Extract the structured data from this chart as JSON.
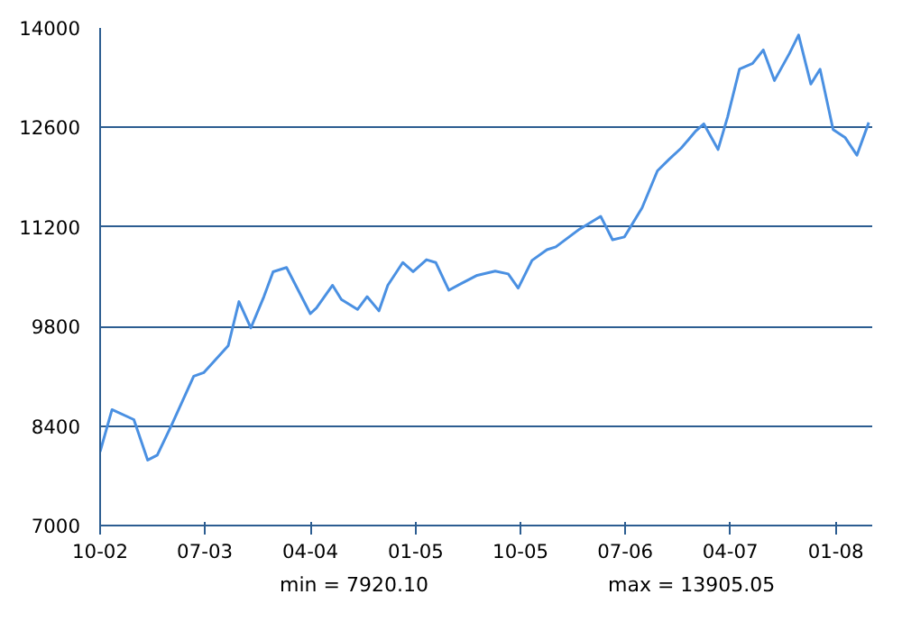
{
  "chart_data": {
    "type": "line",
    "xlim": [
      "2002-10-01",
      "2008-04-05"
    ],
    "ylim": [
      7000,
      14000
    ],
    "yticks": [
      7000,
      8400,
      9800,
      11200,
      12600,
      14000
    ],
    "xticks": [
      {
        "value": "2002-10-01",
        "label": "10-02"
      },
      {
        "value": "2003-07-01",
        "label": "07-03"
      },
      {
        "value": "2004-04-01",
        "label": "04-04"
      },
      {
        "value": "2005-01-01",
        "label": "01-05"
      },
      {
        "value": "2005-10-01",
        "label": "10-05"
      },
      {
        "value": "2006-07-01",
        "label": "07-06"
      },
      {
        "value": "2007-04-01",
        "label": "04-07"
      },
      {
        "value": "2008-01-01",
        "label": "01-08"
      }
    ],
    "grid": "y",
    "marker": "none",
    "line_style": "solid",
    "annotations": [
      "min = 7920.10",
      "max = 13905.05"
    ],
    "x": [
      "2002-10-01",
      "2002-11-01",
      "2002-12-28",
      "2003-02-02",
      "2003-02-27",
      "2003-04-05",
      "2003-06-02",
      "2003-06-28",
      "2003-08-31",
      "2003-09-28",
      "2003-10-29",
      "2003-12-02",
      "2003-12-26",
      "2004-01-30",
      "2004-04-01",
      "2004-04-17",
      "2004-05-29",
      "2004-06-21",
      "2004-08-02",
      "2004-08-27",
      "2004-09-27",
      "2004-10-20",
      "2004-11-28",
      "2004-12-25",
      "2005-01-29",
      "2005-02-22",
      "2005-03-28",
      "2005-04-28",
      "2005-06-10",
      "2005-07-27",
      "2005-08-30",
      "2005-09-25",
      "2005-10-31",
      "2005-12-09",
      "2006-01-01",
      "2006-03-04",
      "2006-04-28",
      "2006-05-29",
      "2006-06-29",
      "2006-08-14",
      "2006-09-23",
      "2006-10-23",
      "2006-11-24",
      "2007-01-01",
      "2007-01-22",
      "2007-02-28",
      "2007-03-25",
      "2007-04-25",
      "2007-05-29",
      "2007-06-26",
      "2007-07-25",
      "2007-09-02",
      "2007-09-26",
      "2007-10-28",
      "2007-11-21",
      "2007-12-25",
      "2008-01-25",
      "2008-02-25",
      "2008-03-27"
    ],
    "series": [
      {
        "color": "#4a90e2",
        "values": [
          8040,
          8630,
          8490,
          7920,
          7990,
          8410,
          9100,
          9150,
          9530,
          10150,
          9780,
          10220,
          10570,
          10630,
          9980,
          10060,
          10380,
          10180,
          10040,
          10220,
          10020,
          10380,
          10700,
          10570,
          10740,
          10700,
          10310,
          10400,
          10520,
          10580,
          10540,
          10340,
          10730,
          10880,
          10920,
          11170,
          11350,
          11020,
          11060,
          11470,
          11990,
          12150,
          12310,
          12550,
          12650,
          12290,
          12750,
          13420,
          13500,
          13690,
          13260,
          13640,
          13900,
          13210,
          13420,
          12570,
          12460,
          12210,
          12670
        ]
      }
    ]
  }
}
